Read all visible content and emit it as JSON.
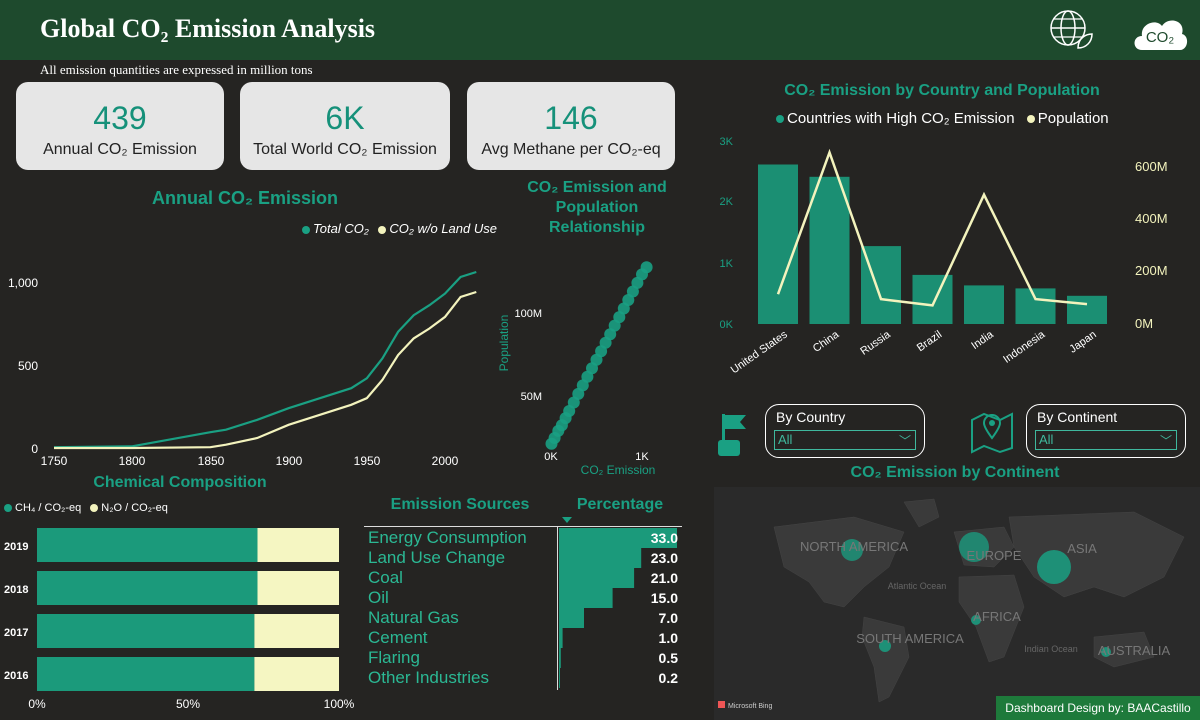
{
  "header": {
    "title": "Global CO₂ Emission Analysis",
    "note": "All emission quantities are expressed in million tons"
  },
  "kpis": [
    {
      "value": "439",
      "label": "Annual CO₂ Emission"
    },
    {
      "value": "6K",
      "label": "Total World CO₂ Emission"
    },
    {
      "value": "146",
      "label": "Avg Methane per CO₂-eq"
    }
  ],
  "annual_chart": {
    "title": "Annual CO₂ Emission",
    "legend": [
      "Total CO₂",
      "CO₂ w/o Land Use"
    ],
    "y_ticks": [
      "1,000",
      "500",
      "0"
    ],
    "x_ticks": [
      "1750",
      "1800",
      "1850",
      "1900",
      "1950",
      "2000"
    ]
  },
  "scatter_chart": {
    "title_lines": [
      "CO₂ Emission and",
      "Population",
      "Relationship"
    ],
    "y_label": "Population",
    "x_label": "CO₂ Emission",
    "y_ticks": [
      "100M",
      "50M"
    ],
    "x_ticks": [
      "0K",
      "1K"
    ]
  },
  "country_chart": {
    "title": "CO₂ Emission by Country and Population",
    "legend": [
      "Countries with High CO₂ Emission",
      "Population"
    ],
    "left_ticks": [
      "3K",
      "2K",
      "1K",
      "0K"
    ],
    "right_ticks": [
      "600M",
      "400M",
      "200M",
      "0M"
    ]
  },
  "filters": {
    "country": {
      "label": "By Country",
      "value": "All"
    },
    "continent": {
      "label": "By Continent",
      "value": "All"
    }
  },
  "map": {
    "title": "CO₂ Emission by Continent",
    "labels": [
      "NORTH AMERICA",
      "EUROPE",
      "ASIA",
      "AFRICA",
      "SOUTH AMERICA",
      "AUSTRALIA"
    ],
    "ocean_labels": [
      "Atlantic Ocean",
      "Indian Ocean"
    ],
    "attribution": "Microsoft Bing"
  },
  "composition": {
    "title": "Chemical Composition",
    "legend": [
      "CH₄ / CO₂-eq",
      "N₂O / CO₂-eq"
    ],
    "x_ticks": [
      "0%",
      "50%",
      "100%"
    ]
  },
  "sources": {
    "col1": "Emission Sources",
    "col2": "Percentage",
    "rows": [
      {
        "name": "Energy Consumption",
        "value": "33.0"
      },
      {
        "name": "Land Use Change",
        "value": "23.0"
      },
      {
        "name": "Coal",
        "value": "21.0"
      },
      {
        "name": "Oil",
        "value": "15.0"
      },
      {
        "name": "Natural Gas",
        "value": "7.0"
      },
      {
        "name": "Cement",
        "value": "1.0"
      },
      {
        "name": "Flaring",
        "value": "0.5"
      },
      {
        "name": "Other Industries",
        "value": "0.2"
      }
    ]
  },
  "footer": "Dashboard Design by: BAACastillo",
  "chart_data": [
    {
      "type": "line",
      "title": "Annual CO₂ Emission",
      "xlim": [
        1750,
        2022
      ],
      "ylim": [
        0,
        1100
      ],
      "series": [
        {
          "name": "Total CO₂",
          "x": [
            1750,
            1800,
            1850,
            1860,
            1880,
            1900,
            1920,
            1940,
            1950,
            1960,
            1970,
            1980,
            1990,
            2000,
            2010,
            2020
          ],
          "y": [
            5,
            10,
            95,
            110,
            170,
            240,
            300,
            360,
            420,
            540,
            700,
            800,
            860,
            930,
            1030,
            1060
          ]
        },
        {
          "name": "CO₂ w/o Land Use",
          "x": [
            1750,
            1800,
            1850,
            1860,
            1880,
            1900,
            1920,
            1940,
            1950,
            1960,
            1970,
            1980,
            1990,
            2000,
            2010,
            2020
          ],
          "y": [
            0,
            0,
            5,
            20,
            60,
            140,
            200,
            260,
            300,
            410,
            560,
            660,
            720,
            790,
            910,
            940
          ]
        }
      ]
    },
    {
      "type": "scatter",
      "title": "CO₂ Emission and Population Relationship",
      "xlabel": "CO₂ Emission",
      "ylabel": "Population",
      "xlim": [
        0,
        1100
      ],
      "ylim": [
        0,
        140000000
      ],
      "x": [
        5,
        40,
        80,
        120,
        160,
        200,
        250,
        300,
        350,
        400,
        450,
        500,
        550,
        600,
        650,
        700,
        750,
        800,
        850,
        900,
        950,
        1000,
        1050
      ],
      "y": [
        8000000,
        12000000,
        17000000,
        21000000,
        26000000,
        31000000,
        37000000,
        43000000,
        49000000,
        55000000,
        61000000,
        67000000,
        73000000,
        79000000,
        85000000,
        91000000,
        97000000,
        103000000,
        109000000,
        115000000,
        121000000,
        127000000,
        132000000
      ]
    },
    {
      "type": "bar",
      "title": "CO₂ Emission by Country and Population",
      "categories": [
        "United States",
        "China",
        "Russia",
        "Brazil",
        "India",
        "Indonesia",
        "Japan"
      ],
      "ylim": [
        0,
        3000
      ],
      "series": [
        {
          "name": "Countries with High CO₂ Emission",
          "type": "bar",
          "values": [
            2600,
            2400,
            1270,
            800,
            630,
            580,
            460
          ]
        },
        {
          "name": "Population",
          "type": "line",
          "axis": "right",
          "ylim": [
            0,
            700000000
          ],
          "values": [
            120000000,
            690000000,
            100000000,
            75000000,
            520000000,
            100000000,
            80000000
          ]
        }
      ]
    },
    {
      "type": "bar",
      "title": "Chemical Composition",
      "categories": [
        "2019",
        "2018",
        "2017",
        "2016"
      ],
      "series": [
        {
          "name": "CH₄ / CO₂-eq",
          "values": [
            73,
            73,
            72,
            72
          ]
        },
        {
          "name": "N₂O / CO₂-eq",
          "values": [
            27,
            27,
            28,
            28
          ]
        }
      ]
    },
    {
      "type": "bar",
      "title": "Emission Sources",
      "categories": [
        "Energy Consumption",
        "Land Use Change",
        "Coal",
        "Oil",
        "Natural Gas",
        "Cement",
        "Flaring",
        "Other Industries"
      ],
      "values": [
        33.0,
        23.0,
        21.0,
        15.0,
        7.0,
        1.0,
        0.5,
        0.2
      ]
    }
  ]
}
